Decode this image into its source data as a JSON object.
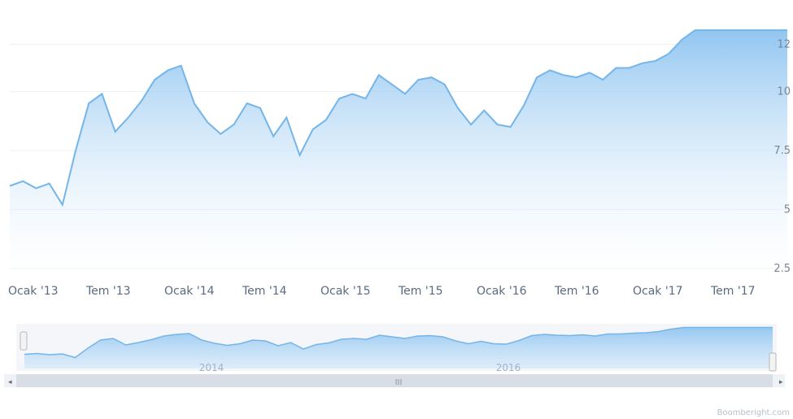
{
  "chart_data": {
    "type": "area",
    "title": "",
    "xlabel": "",
    "ylabel": "",
    "x_tick_labels": [
      "Ocak '13",
      "Tem '13",
      "Ocak '14",
      "Tem '14",
      "Ocak '15",
      "Tem '15",
      "Ocak '16",
      "Tem '16",
      "Ocak '17",
      "Tem '17"
    ],
    "y_tick_labels": [
      "2.5",
      "5",
      "7.5",
      "10",
      "12"
    ],
    "ylim": [
      2.5,
      12.5
    ],
    "grid": true,
    "series": [
      {
        "x": [
          "2013-01",
          "2013-02",
          "2013-03",
          "2013-04",
          "2013-05",
          "2013-06",
          "2013-07",
          "2013-08",
          "2013-09",
          "2013-10",
          "2013-11",
          "2013-12",
          "2014-01",
          "2014-02",
          "2014-03",
          "2014-04",
          "2014-05",
          "2014-06",
          "2014-07",
          "2014-08",
          "2014-09",
          "2014-10",
          "2014-11",
          "2014-12",
          "2015-01",
          "2015-02",
          "2015-03",
          "2015-04",
          "2015-05",
          "2015-06",
          "2015-07",
          "2015-08",
          "2015-09",
          "2015-10",
          "2015-11",
          "2015-12",
          "2016-01",
          "2016-02",
          "2016-03",
          "2016-04",
          "2016-05",
          "2016-06",
          "2016-07",
          "2016-08",
          "2016-09",
          "2016-10",
          "2016-11",
          "2016-12",
          "2017-01",
          "2017-02",
          "2017-03",
          "2017-04",
          "2017-05",
          "2017-06",
          "2017-07",
          "2017-08",
          "2017-09",
          "2017-10",
          "2017-11",
          "2017-12"
        ],
        "values": [
          6.0,
          6.2,
          5.9,
          6.1,
          5.2,
          7.5,
          9.5,
          9.9,
          8.3,
          8.9,
          9.6,
          10.5,
          10.9,
          11.1,
          9.5,
          8.7,
          8.2,
          8.6,
          9.5,
          9.3,
          8.1,
          8.9,
          7.3,
          8.4,
          8.8,
          9.7,
          9.9,
          9.7,
          10.7,
          10.3,
          9.9,
          10.5,
          10.6,
          10.3,
          9.3,
          8.6,
          9.2,
          8.6,
          8.5,
          9.4,
          10.6,
          10.9,
          10.7,
          10.6,
          10.8,
          10.5,
          11.0,
          11.0,
          11.2,
          11.3,
          11.6,
          12.2,
          12.6,
          12.6,
          12.6,
          12.6,
          12.6,
          12.6,
          12.6,
          12.6
        ]
      }
    ],
    "navigator": {
      "labels": [
        "2014",
        "2016"
      ],
      "scrollbar_grip": "III"
    }
  },
  "colors": {
    "line": "#74b5ea",
    "fill_top": "#8cc3f0",
    "fill_bottom": "#ffffff",
    "nav_mask": "#e6ebf3"
  },
  "credit": "Boomberight.com"
}
